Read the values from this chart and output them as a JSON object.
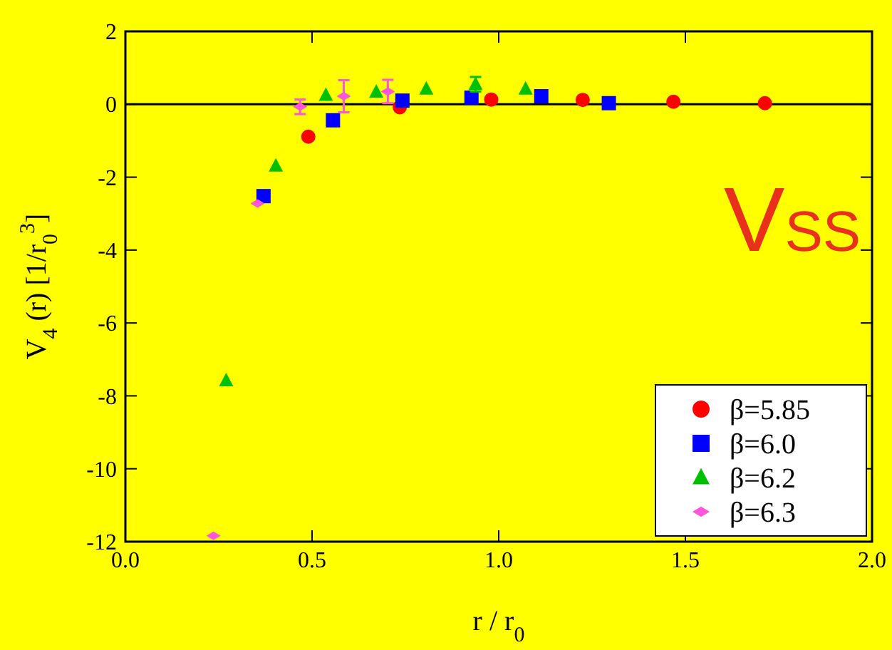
{
  "chart_data": {
    "type": "scatter",
    "xlabel": "r / r$_{0}$",
    "ylabel": "V$_{4}$ (r) [1/r$_{0}$$^{3}$]",
    "xlim": [
      0,
      2
    ],
    "xticks": [
      {
        "value": 0,
        "label": "0.0"
      },
      {
        "value": 0.5,
        "label": "0.5"
      },
      {
        "value": 1,
        "label": "1.0"
      },
      {
        "value": 1.5,
        "label": "1.5"
      },
      {
        "value": 2,
        "label": "2.0"
      }
    ],
    "ylim": [
      -12,
      2
    ],
    "yticks": [
      -12,
      -10,
      -8,
      -6,
      -4,
      -2,
      0,
      2
    ],
    "legend": "bottom right",
    "grid": false,
    "ref_lines": [
      {
        "axis": "y",
        "value": 0,
        "color": "#000000"
      }
    ],
    "annotations": [
      "VSS"
    ],
    "series": [
      {
        "name": "β=5.85",
        "color": "#ff0000",
        "marker": "circle",
        "x": [
          0.49,
          0.735,
          0.98,
          1.225,
          1.468,
          1.713
        ],
        "values": [
          -0.89,
          -0.08,
          0.13,
          0.12,
          0.07,
          0.03
        ]
      },
      {
        "name": "β=6.0",
        "color": "#0000ff",
        "marker": "square",
        "x": [
          0.37,
          0.556,
          0.742,
          0.927,
          1.114,
          1.295
        ],
        "values": [
          -2.52,
          -0.44,
          0.1,
          0.18,
          0.22,
          0.03
        ]
      },
      {
        "name": "β=6.2",
        "color": "#00c000",
        "marker": "triangle",
        "x": [
          0.27,
          0.403,
          0.537,
          0.672,
          0.806,
          0.938,
          1.072
        ],
        "values": [
          -7.58,
          -1.69,
          0.25,
          0.34,
          0.42,
          0.55,
          0.42
        ],
        "errors": [
          null,
          null,
          null,
          null,
          null,
          0.2,
          null
        ]
      },
      {
        "name": "β=6.3",
        "color": "#ff55dd",
        "marker": "diamond",
        "x": [
          0.236,
          0.354,
          0.468,
          0.585,
          0.703
        ],
        "values": [
          -11.84,
          -2.72,
          -0.07,
          0.22,
          0.35
        ],
        "errors": [
          null,
          null,
          0.2,
          0.44,
          0.32
        ]
      }
    ]
  }
}
